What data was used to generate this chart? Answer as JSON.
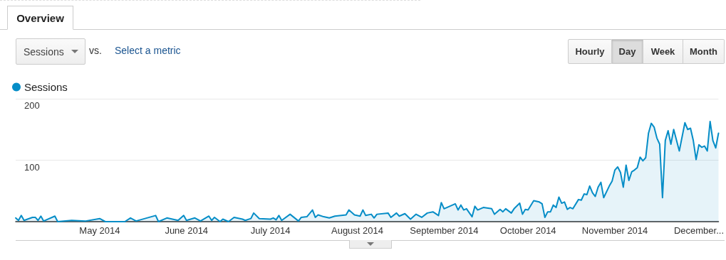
{
  "chart_data": {
    "type": "area",
    "title": "Overview",
    "annotations": [
      "Sessions",
      "vs.",
      "Select a metric",
      "Hourly",
      "Day",
      "Week",
      "Month"
    ],
    "xlim": [
      "2014-04-01",
      "2014-12-08"
    ],
    "xticks": [
      {
        "value": "2014-05-01",
        "label": "May 2014"
      },
      {
        "value": "2014-06-01",
        "label": "June 2014"
      },
      {
        "value": "2014-07-01",
        "label": "July 2014"
      },
      {
        "value": "2014-08-01",
        "label": "August 2014"
      },
      {
        "value": "2014-09-01",
        "label": "September 2014"
      },
      {
        "value": "2014-10-01",
        "label": "October 2014"
      },
      {
        "value": "2014-11-01",
        "label": "November 2014"
      },
      {
        "value": "2014-12-01",
        "label": "December..."
      }
    ],
    "ylim": [
      0,
      200
    ],
    "yticks": [
      {
        "value": 0,
        "label": null
      },
      100,
      200
    ],
    "grid": "y",
    "legend": "top left",
    "marker": "none",
    "line_style": "solid",
    "series": [
      {
        "name": "Sessions",
        "color": "#058dc7",
        "x": [
          "2014-04-01",
          "2014-04-02",
          "2014-04-03",
          "2014-04-04",
          "2014-04-07",
          "2014-04-08",
          "2014-04-09",
          "2014-04-10",
          "2014-04-11",
          "2014-04-15",
          "2014-04-16",
          "2014-04-21",
          "2014-04-26",
          "2014-05-01",
          "2014-05-03",
          "2014-05-10",
          "2014-05-12",
          "2014-05-14",
          "2014-05-21",
          "2014-05-22",
          "2014-05-25",
          "2014-05-29",
          "2014-05-31",
          "2014-06-01",
          "2014-06-04",
          "2014-06-06",
          "2014-06-09",
          "2014-06-10",
          "2014-06-11",
          "2014-06-13",
          "2014-06-14",
          "2014-06-16",
          "2014-06-18",
          "2014-06-21",
          "2014-06-22",
          "2014-06-24",
          "2014-06-25",
          "2014-06-27",
          "2014-07-01",
          "2014-07-02",
          "2014-07-03",
          "2014-07-04",
          "2014-07-05",
          "2014-07-08",
          "2014-07-11",
          "2014-07-12",
          "2014-07-14",
          "2014-07-16",
          "2014-07-17",
          "2014-07-18",
          "2014-07-20",
          "2014-07-22",
          "2014-07-24",
          "2014-07-28",
          "2014-07-29",
          "2014-07-31",
          "2014-08-02",
          "2014-08-03",
          "2014-08-04",
          "2014-08-06",
          "2014-08-07",
          "2014-08-08",
          "2014-08-12",
          "2014-08-13",
          "2014-08-15",
          "2014-08-16",
          "2014-08-18",
          "2014-08-20",
          "2014-08-22",
          "2014-08-24",
          "2014-08-26",
          "2014-08-28",
          "2014-08-30",
          "2014-08-31",
          "2014-09-01",
          "2014-09-03",
          "2014-09-05",
          "2014-09-06",
          "2014-09-07",
          "2014-09-08",
          "2014-09-09",
          "2014-09-11",
          "2014-09-12",
          "2014-09-13",
          "2014-09-15",
          "2014-09-18",
          "2014-09-19",
          "2014-09-21",
          "2014-09-22",
          "2014-09-23",
          "2014-09-25",
          "2014-09-26",
          "2014-09-28",
          "2014-09-29",
          "2014-09-30",
          "2014-10-01",
          "2014-10-03",
          "2014-10-05",
          "2014-10-06",
          "2014-10-07",
          "2014-10-08",
          "2014-10-09",
          "2014-10-10",
          "2014-10-11",
          "2014-10-12",
          "2014-10-13",
          "2014-10-14",
          "2014-10-15",
          "2014-10-16",
          "2014-10-17",
          "2014-10-19",
          "2014-10-20",
          "2014-10-21",
          "2014-10-22",
          "2014-10-23",
          "2014-10-24",
          "2014-10-25",
          "2014-10-26",
          "2014-10-27",
          "2014-10-28",
          "2014-10-30",
          "2014-10-31",
          "2014-11-01",
          "2014-11-02",
          "2014-11-03",
          "2014-11-04",
          "2014-11-05",
          "2014-11-06",
          "2014-11-07",
          "2014-11-08",
          "2014-11-09",
          "2014-11-10",
          "2014-11-11",
          "2014-11-12",
          "2014-11-13",
          "2014-11-14",
          "2014-11-15",
          "2014-11-16",
          "2014-11-17",
          "2014-11-18",
          "2014-11-19",
          "2014-11-20",
          "2014-11-21",
          "2014-11-22",
          "2014-11-24",
          "2014-11-26",
          "2014-11-27",
          "2014-11-28",
          "2014-11-29",
          "2014-11-30",
          "2014-12-01",
          "2014-12-02",
          "2014-12-03",
          "2014-12-04",
          "2014-12-05",
          "2014-12-06",
          "2014-12-07",
          "2014-12-08"
        ],
        "values": [
          6,
          2,
          10,
          2,
          7,
          7,
          2,
          9,
          1,
          9,
          0,
          2,
          1,
          5,
          0,
          0,
          6,
          1,
          10,
          0,
          6,
          2,
          10,
          2,
          6,
          1,
          9,
          2,
          7,
          0,
          4,
          0,
          7,
          4,
          2,
          5,
          14,
          5,
          4,
          6,
          3,
          10,
          2,
          12,
          1,
          7,
          8,
          19,
          7,
          11,
          8,
          6,
          9,
          11,
          19,
          11,
          9,
          19,
          10,
          12,
          6,
          12,
          14,
          7,
          14,
          9,
          13,
          4,
          12,
          7,
          14,
          16,
          10,
          31,
          21,
          25,
          29,
          19,
          27,
          19,
          21,
          8,
          25,
          19,
          23,
          21,
          12,
          20,
          16,
          21,
          14,
          21,
          30,
          12,
          20,
          19,
          34,
          32,
          29,
          7,
          16,
          16,
          27,
          23,
          40,
          30,
          32,
          20,
          23,
          21,
          36,
          35,
          45,
          44,
          58,
          47,
          41,
          56,
          64,
          39,
          58,
          66,
          84,
          89,
          80,
          56,
          92,
          67,
          81,
          84,
          88,
          105,
          99,
          104,
          144,
          160,
          154,
          136,
          126,
          39,
          132,
          148,
          126,
          150,
          115,
          161,
          150,
          152,
          132,
          101,
          125,
          121,
          123,
          115,
          163,
          132,
          120,
          144
        ]
      }
    ]
  }
}
